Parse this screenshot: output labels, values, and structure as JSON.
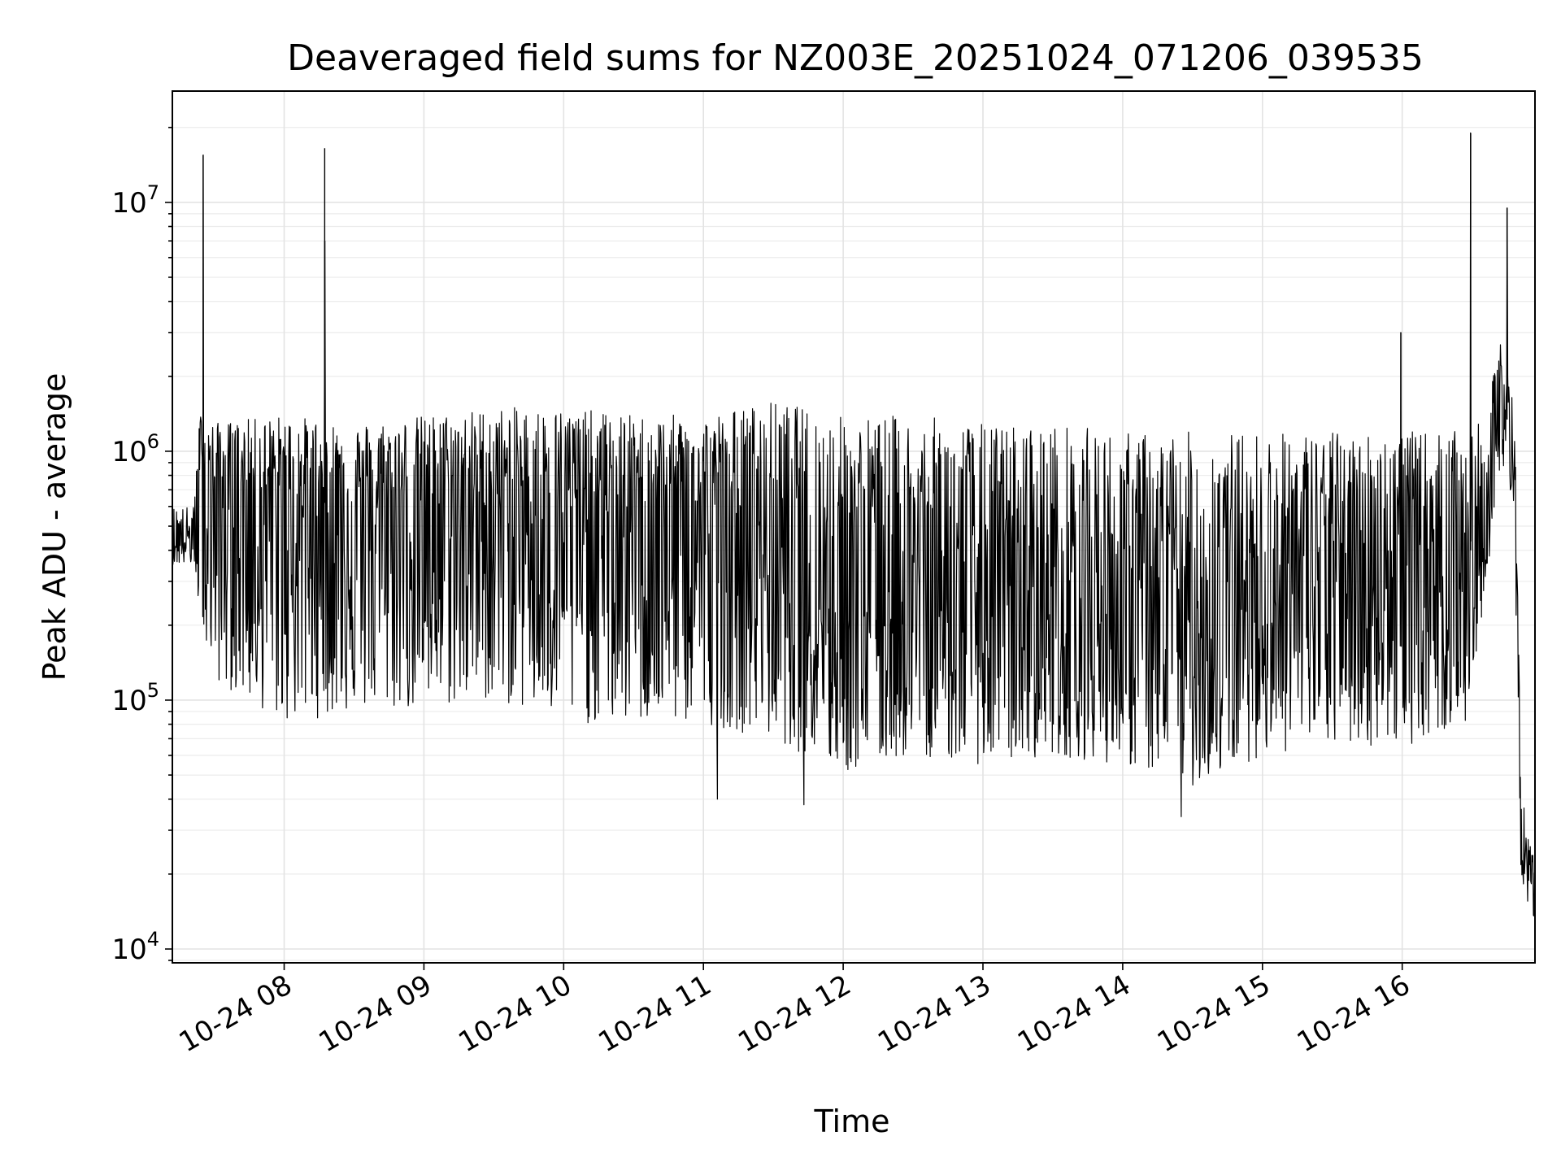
{
  "chart_data": {
    "type": "line",
    "title": "Deaveraged field sums for NZ003E_20251024_071206_039535",
    "xlabel": "Time",
    "ylabel": "Peak ADU - average",
    "yscale": "log",
    "grid": true,
    "xlim_hours": [
      7.2,
      16.95
    ],
    "ylim": [
      8800,
      28000000
    ],
    "x_ticks": [
      {
        "value": 8,
        "label": "10-24 08"
      },
      {
        "value": 9,
        "label": "10-24 09"
      },
      {
        "value": 10,
        "label": "10-24 10"
      },
      {
        "value": 11,
        "label": "10-24 11"
      },
      {
        "value": 12,
        "label": "10-24 12"
      },
      {
        "value": 13,
        "label": "10-24 13"
      },
      {
        "value": 14,
        "label": "10-24 14"
      },
      {
        "value": 15,
        "label": "10-24 15"
      },
      {
        "value": 16,
        "label": "10-24 16"
      }
    ],
    "y_ticks": [
      {
        "value": 10000,
        "base": "10",
        "exp": "4"
      },
      {
        "value": 100000,
        "base": "10",
        "exp": "5"
      },
      {
        "value": 1000000,
        "base": "10",
        "exp": "6"
      },
      {
        "value": 10000000,
        "base": "10",
        "exp": "7"
      }
    ],
    "series": [
      {
        "name": "peak_adu_minus_average",
        "color": "#000000",
        "envelope": {
          "x": [
            7.2,
            7.35,
            7.4,
            7.5,
            8.0,
            8.5,
            9.0,
            9.5,
            10.0,
            10.5,
            11.0,
            11.5,
            12.0,
            12.5,
            13.0,
            13.5,
            14.0,
            14.5,
            15.0,
            15.5,
            16.0,
            16.5,
            16.6,
            16.7,
            16.8,
            16.85,
            16.9,
            16.95
          ],
          "median": [
            450000,
            450000,
            700000,
            700000,
            650000,
            600000,
            600000,
            650000,
            600000,
            550000,
            550000,
            450000,
            300000,
            300000,
            250000,
            250000,
            250000,
            200000,
            300000,
            350000,
            400000,
            400000,
            500000,
            1500000,
            1200000,
            30000,
            20000,
            18000
          ],
          "low": [
            350000,
            350000,
            200000,
            120000,
            80000,
            90000,
            90000,
            100000,
            80000,
            80000,
            80000,
            70000,
            50000,
            60000,
            55000,
            60000,
            55000,
            45000,
            60000,
            65000,
            65000,
            80000,
            300000,
            800000,
            600000,
            20000,
            15000,
            13000
          ],
          "high": [
            600000,
            600000,
            1500000,
            1300000,
            1400000,
            1300000,
            1400000,
            1500000,
            1500000,
            1400000,
            1400000,
            1600000,
            1400000,
            1400000,
            1300000,
            1300000,
            1200000,
            1200000,
            1200000,
            1200000,
            1200000,
            1200000,
            1400000,
            2800000,
            2000000,
            50000,
            28000,
            25000
          ]
        },
        "spikes": [
          {
            "x": 7.42,
            "y": 15500000
          },
          {
            "x": 8.29,
            "y": 16500000
          },
          {
            "x": 8.29,
            "y": 7000000
          },
          {
            "x": 15.99,
            "y": 3000000
          },
          {
            "x": 16.49,
            "y": 19000000
          },
          {
            "x": 16.75,
            "y": 9500000
          }
        ],
        "notable_minima": [
          {
            "x": 11.1,
            "y": 40000
          },
          {
            "x": 11.72,
            "y": 38000
          },
          {
            "x": 14.42,
            "y": 34000
          }
        ]
      }
    ]
  }
}
